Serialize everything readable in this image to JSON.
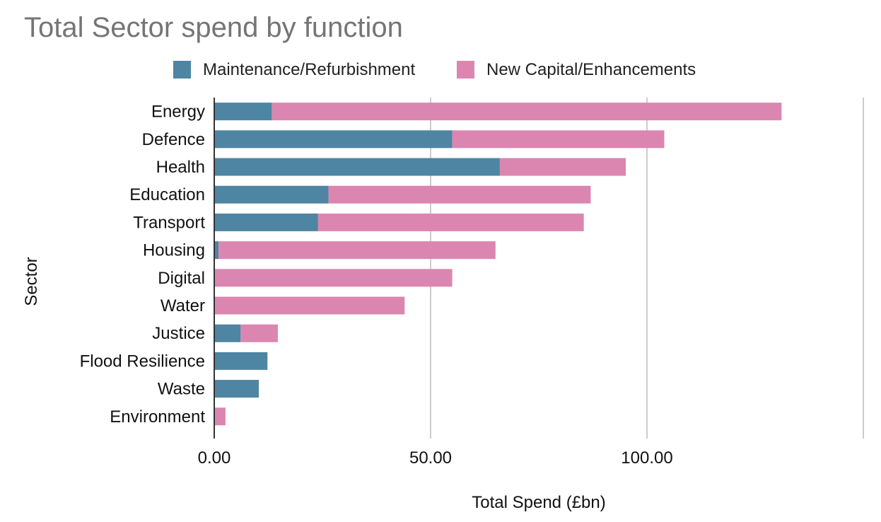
{
  "chart_data": {
    "type": "bar",
    "orientation": "horizontal",
    "stacked": true,
    "title": "Total Sector spend by function",
    "xlabel": "Total Spend (£bn)",
    "ylabel": "Sector",
    "xlim": [
      0,
      150
    ],
    "xticks": [
      0,
      50,
      100,
      150
    ],
    "xtick_labels": [
      "0.00",
      "50.00",
      "100.00",
      ""
    ],
    "grid": true,
    "legend_position": "top",
    "categories": [
      "Energy",
      "Defence",
      "Health",
      "Education",
      "Transport",
      "Housing",
      "Digital",
      "Water",
      "Justice",
      "Flood Resilience",
      "Waste",
      "Environment"
    ],
    "series": [
      {
        "name": "Maintenance/Refurbishment",
        "color": "#4e85a2",
        "values": [
          13.3,
          55.0,
          66.0,
          26.4,
          24.0,
          1.0,
          0.0,
          0.0,
          6.1,
          12.3,
          10.3,
          0.0
        ]
      },
      {
        "name": "New Capital/Enhancements",
        "color": "#db86b0",
        "values": [
          117.8,
          49.0,
          29.1,
          60.6,
          61.4,
          64.0,
          55.0,
          44.0,
          8.6,
          0.0,
          0.0,
          2.6
        ]
      }
    ]
  }
}
